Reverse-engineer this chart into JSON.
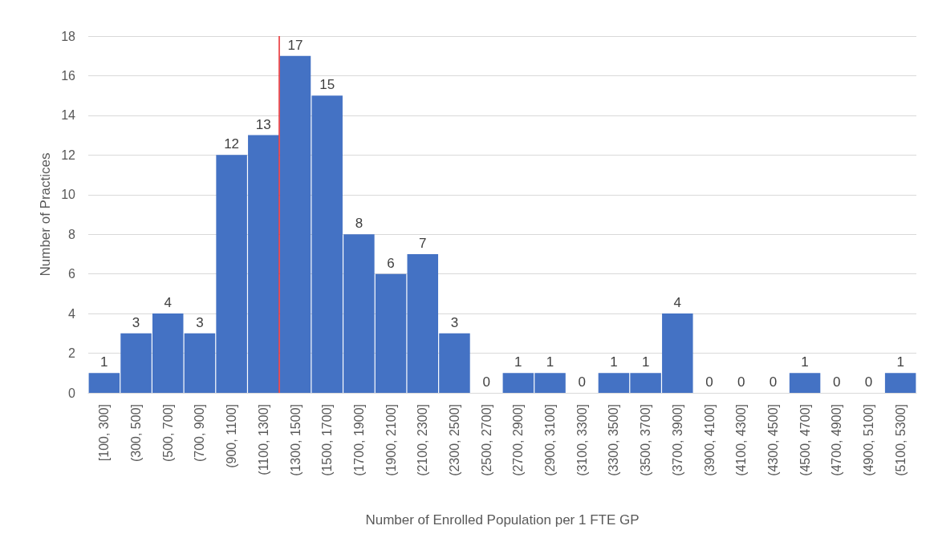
{
  "chart_data": {
    "type": "bar",
    "xlabel": "Number of Enrolled Population per 1 FTE GP",
    "ylabel": "Number of Practices",
    "categories": [
      "[100, 300]",
      "(300, 500]",
      "(500, 700]",
      "(700, 900]",
      "(900, 1100]",
      "(1100, 1300]",
      "(1300, 1500]",
      "(1500, 1700]",
      "(1700, 1900]",
      "(1900, 2100]",
      "(2100, 2300]",
      "(2300, 2500]",
      "(2500, 2700]",
      "(2700, 2900]",
      "(2900, 3100]",
      "(3100, 3300]",
      "(3300, 3500]",
      "(3500, 3700]",
      "(3700, 3900]",
      "(3900, 4100]",
      "(4100, 4300]",
      "(4300, 4500]",
      "(4500, 4700]",
      "(4700, 4900]",
      "(4900, 5100]",
      "(5100, 5300]"
    ],
    "values": [
      1,
      3,
      4,
      3,
      12,
      13,
      17,
      15,
      8,
      6,
      7,
      3,
      0,
      1,
      1,
      0,
      1,
      1,
      4,
      0,
      0,
      0,
      1,
      0,
      0,
      1
    ],
    "color": "#4472c4",
    "data_labels": true,
    "ylim": [
      0,
      18
    ],
    "yticks": [
      0,
      2,
      4,
      6,
      8,
      10,
      12,
      14,
      16,
      18
    ],
    "grid": "y",
    "ref_lines": [
      {
        "axis": "x",
        "value": "(1100, 1300]",
        "label": null,
        "color": "#e8262a"
      }
    ]
  }
}
